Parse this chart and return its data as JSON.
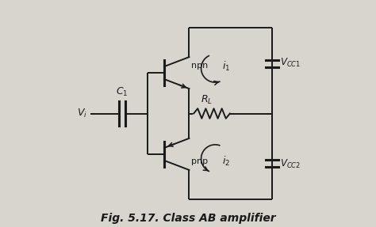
{
  "bg_color": "#d8d5cf",
  "line_color": "#1a1a1a",
  "title": "Fig. 5.17. Class AB amplifier",
  "title_fontsize": 10,
  "fig_width": 4.74,
  "fig_height": 2.87,
  "dpi": 100
}
